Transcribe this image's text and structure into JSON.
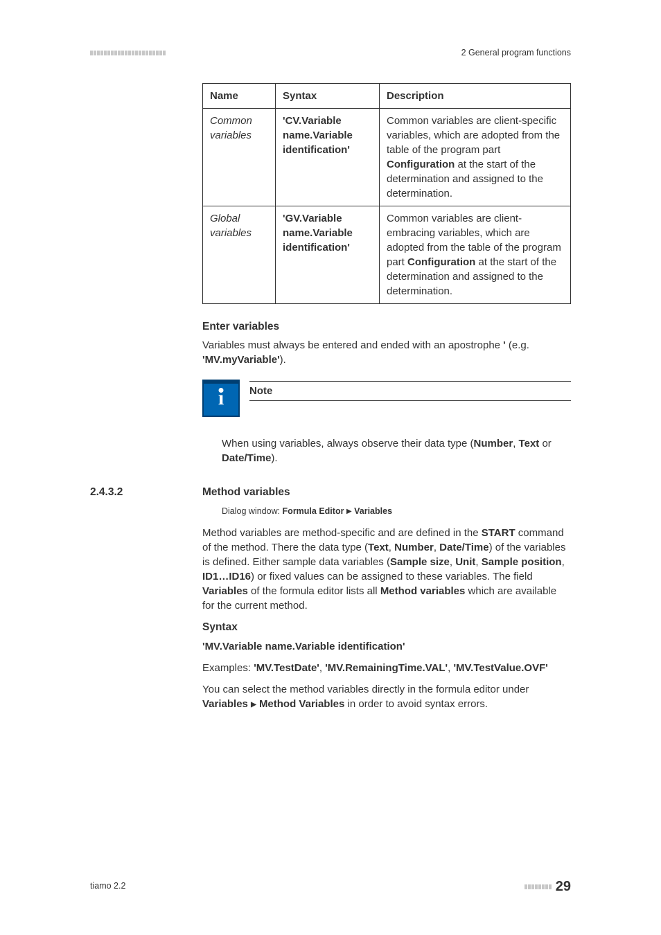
{
  "header": {
    "right": "2 General program functions"
  },
  "table": {
    "headers": {
      "name": "Name",
      "syntax": "Syntax",
      "desc": "Description"
    },
    "rows": [
      {
        "name": "Common variables",
        "syntax": "'CV.Variable name.Variable identification'",
        "desc_pre": "Common variables are client-specific variables, which are adopted from the table of the program part ",
        "desc_bold": "Configuration",
        "desc_post": " at the start of the determination and assigned to the determination."
      },
      {
        "name": "Global variables",
        "syntax": "'GV.Variable name.Variable identification'",
        "desc_pre": "Common variables are client-embracing variables, which are adopted from the table of the program part ",
        "desc_bold": "Configuration",
        "desc_post": " at the start of the determination and assigned to the determination."
      }
    ]
  },
  "enter": {
    "title": "Enter variables",
    "p_pre": "Variables must always be entered and ended with an apostrophe ",
    "p_bold1": "'",
    "p_mid": " (e.g. ",
    "p_bold2": "'MV.myVariable'",
    "p_post": ")."
  },
  "note": {
    "title": "Note",
    "body_pre": "When using variables, always observe their data type (",
    "b1": "Number",
    "s1": ", ",
    "b2": "Text",
    "s2": " or ",
    "b3": "Date/Time",
    "post": ")."
  },
  "sub": {
    "num": "2.4.3.2",
    "title": "Method variables",
    "dialog_label": "Dialog window: ",
    "dialog_b1": "Formula Editor",
    "dialog_b2": "Variables"
  },
  "method_p": {
    "t1": "Method variables are method-specific and are defined in the ",
    "b1": "START",
    "t2": " command of the method. There the data type (",
    "b2": "Text",
    "t3": ", ",
    "b3": "Number",
    "t4": ", ",
    "b4": "Date/Time",
    "t5": ") of the variables is defined. Either sample data variables (",
    "b5": "Sample size",
    "t6": ", ",
    "b6": "Unit",
    "t7": ", ",
    "b7": "Sample position",
    "t8": ", ",
    "b8": "ID1…ID16",
    "t9": ") or fixed values can be assigned to these variables. The field ",
    "b9": "Variables",
    "t10": " of the formula editor lists all ",
    "b10": "Method variables",
    "t11": " which are available for the current method."
  },
  "syntax": {
    "title": "Syntax",
    "line": "'MV.Variable name.Variable identification'",
    "ex_label": "Examples: ",
    "ex1": "'MV.TestDate'",
    "ex_s1": ", ",
    "ex2": "'MV.RemainingTime.VAL'",
    "ex_s2": ", ",
    "ex3": "'MV.TestValue.OVF'"
  },
  "select_p": {
    "t1": "You can select the method variables directly in the formula editor under ",
    "b1": "Variables",
    "b2": "Method Variables",
    "t2": " in order to avoid syntax errors."
  },
  "footer": {
    "left": "tiamo 2.2",
    "page": "29"
  }
}
